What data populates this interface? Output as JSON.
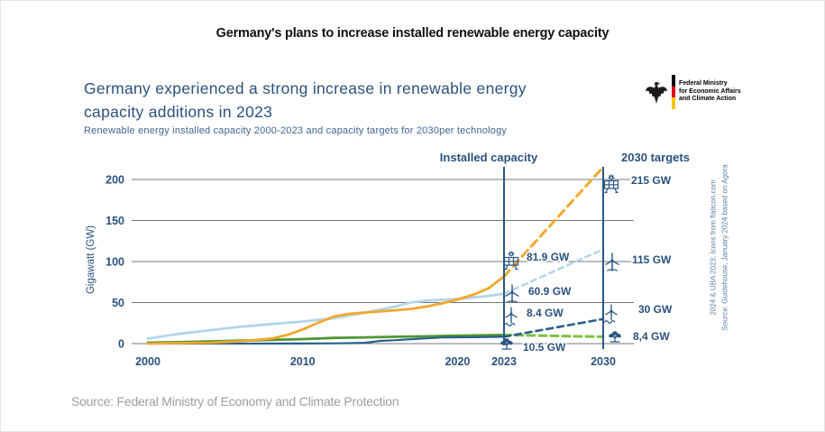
{
  "page": {
    "top_title": "Germany's plans to increase installed renewable energy capacity",
    "bottom_source": "Source: Federal Ministry of Economy and Climate Protection"
  },
  "logo": {
    "lines": [
      "Federal Ministry",
      "for Economic Affairs",
      "and Climate Action"
    ],
    "flag_colors": [
      "#000000",
      "#e2001a",
      "#f7c600"
    ]
  },
  "chart_data": {
    "type": "line",
    "title": "Germany experienced a strong increase in renewable energy capacity additions in 2023",
    "title_lines": [
      "Germany experienced a strong increase in renewable energy",
      "capacity additions in 2023"
    ],
    "subtitle": "Renewable energy installed capacity 2000-2023 and capacity targets for 2030per technology",
    "ylabel": "Gigawatt (GW)",
    "ylim": [
      0,
      215
    ],
    "yticks": [
      0,
      50,
      100,
      150,
      200
    ],
    "xticks": [
      2000,
      2010,
      2020,
      2023,
      2030
    ],
    "grid": true,
    "section_headers": [
      {
        "label": "Installed capacity",
        "year": 2023
      },
      {
        "label": "2030 targets",
        "year": 2030
      }
    ],
    "side_notes": [
      "Source: Guidehouse, January 2024 based on Agora",
      "2024 & UBA 2023; Icons from flaticon.com"
    ],
    "accent_color": "#2a5783",
    "series": [
      {
        "name": "Solar PV",
        "icon": "solar-panel-icon",
        "color": "#f3a72b",
        "installed_label": "81.9 GW",
        "target_label": "215 GW",
        "history": [
          [
            2000,
            0.1
          ],
          [
            2004,
            1.1
          ],
          [
            2006,
            2.9
          ],
          [
            2008,
            6.1
          ],
          [
            2009,
            10.5
          ],
          [
            2010,
            17.2
          ],
          [
            2011,
            25.4
          ],
          [
            2012,
            33.0
          ],
          [
            2013,
            36.3
          ],
          [
            2014,
            37.9
          ],
          [
            2015,
            39.2
          ],
          [
            2016,
            40.7
          ],
          [
            2017,
            42.3
          ],
          [
            2018,
            45.2
          ],
          [
            2019,
            49.0
          ],
          [
            2020,
            53.7
          ],
          [
            2021,
            59.4
          ],
          [
            2022,
            67.5
          ],
          [
            2023,
            81.9
          ]
        ],
        "target": [
          [
            2023,
            81.9
          ],
          [
            2030,
            215
          ]
        ]
      },
      {
        "name": "Onshore wind",
        "icon": "wind-turbine-icon",
        "color": "#b3d5e9",
        "installed_label": "60.9 GW",
        "target_label": "115 GW",
        "history": [
          [
            2000,
            6.1
          ],
          [
            2002,
            11.9
          ],
          [
            2004,
            16.4
          ],
          [
            2006,
            20.5
          ],
          [
            2008,
            23.8
          ],
          [
            2010,
            26.9
          ],
          [
            2012,
            30.9
          ],
          [
            2014,
            37.6
          ],
          [
            2016,
            45.3
          ],
          [
            2017,
            50.2
          ],
          [
            2018,
            52.4
          ],
          [
            2020,
            54.4
          ],
          [
            2022,
            58.1
          ],
          [
            2023,
            60.9
          ]
        ],
        "target": [
          [
            2023,
            60.9
          ],
          [
            2030,
            115
          ]
        ]
      },
      {
        "name": "Offshore wind",
        "icon": "offshore-wind-icon",
        "color": "#2a608d",
        "installed_label": "8.4 GW",
        "target_label": "30 GW",
        "history": [
          [
            2000,
            0
          ],
          [
            2010,
            0.1
          ],
          [
            2012,
            0.3
          ],
          [
            2013,
            0.6
          ],
          [
            2014,
            1.0
          ],
          [
            2015,
            3.3
          ],
          [
            2016,
            4.2
          ],
          [
            2017,
            5.4
          ],
          [
            2018,
            6.4
          ],
          [
            2019,
            7.5
          ],
          [
            2020,
            7.7
          ],
          [
            2021,
            7.8
          ],
          [
            2022,
            8.1
          ],
          [
            2023,
            8.4
          ]
        ],
        "target": [
          [
            2023,
            8.4
          ],
          [
            2030,
            30
          ]
        ]
      },
      {
        "name": "Biomass",
        "icon": "biomass-icon",
        "color": "#4f9733",
        "dash_color": "#7dc242",
        "installed_label": "10.5 GW",
        "target_label": "8,4 GW",
        "history": [
          [
            2000,
            1.2
          ],
          [
            2002,
            1.8
          ],
          [
            2004,
            2.7
          ],
          [
            2006,
            3.6
          ],
          [
            2008,
            4.5
          ],
          [
            2010,
            5.5
          ],
          [
            2012,
            6.9
          ],
          [
            2014,
            7.6
          ],
          [
            2016,
            8.3
          ],
          [
            2018,
            8.9
          ],
          [
            2020,
            9.7
          ],
          [
            2022,
            10.2
          ],
          [
            2023,
            10.5
          ]
        ],
        "target": [
          [
            2023,
            10.5
          ],
          [
            2030,
            8.4
          ]
        ]
      }
    ]
  }
}
